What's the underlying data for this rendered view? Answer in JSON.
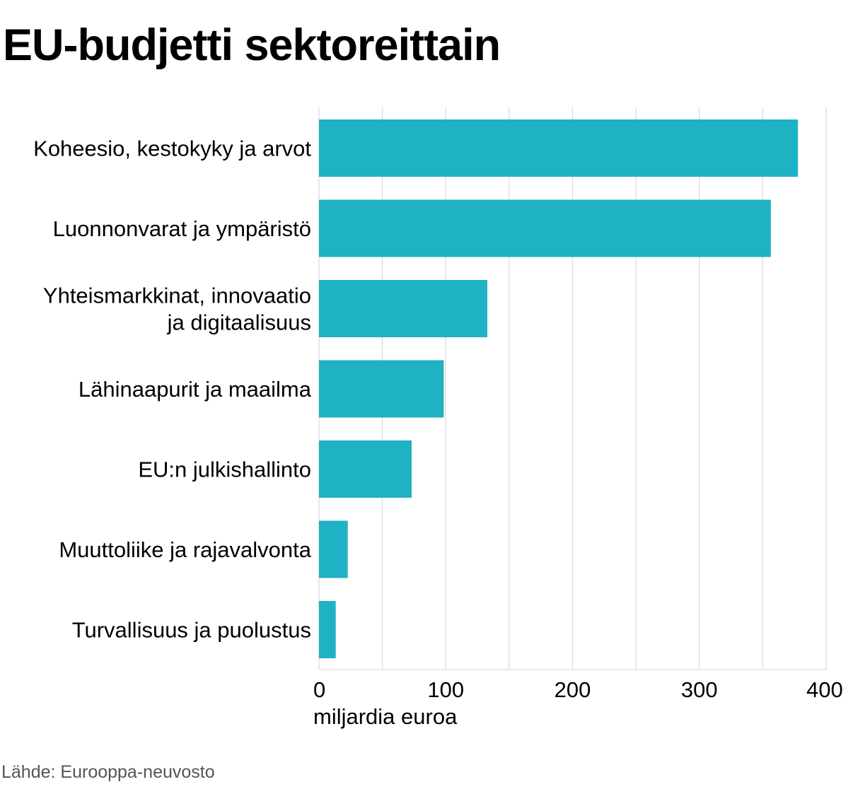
{
  "chart_data": {
    "type": "bar",
    "orientation": "horizontal",
    "title": "EU-budjetti sektoreittain",
    "categories": [
      "Koheesio, kestokyky ja arvot",
      "Luonnonvarat ja ympäristö",
      "Yhteismarkkinat, innovaatio ja digitaalisuus",
      "Lähinaapurit ja maailma",
      "EU:n julkishallinto",
      "Muuttoliike ja rajavalvonta",
      "Turvallisuus ja puolustus"
    ],
    "category_lines": [
      [
        "Koheesio, kestokyky ja arvot"
      ],
      [
        "Luonnonvarat ja ympäristö"
      ],
      [
        "Yhteismarkkinat, innovaatio",
        "ja digitaalisuus"
      ],
      [
        "Lähinaapurit ja maailma"
      ],
      [
        "EU:n julkishallinto"
      ],
      [
        "Muuttoliike ja rajavalvonta"
      ],
      [
        "Turvallisuus ja puolustus"
      ]
    ],
    "values": [
      377.8,
      356.4,
      132.8,
      98.4,
      73.1,
      22.7,
      13.2
    ],
    "xlabel": "miljardia euroa",
    "ylabel": "",
    "xlim": [
      0,
      400
    ],
    "xticks": [
      0,
      100,
      200,
      300,
      400
    ],
    "grid": true,
    "bar_color": "#1fb1c4",
    "grid_color": "#e0e0e0"
  },
  "source": "Lähde: Eurooppa-neuvosto"
}
